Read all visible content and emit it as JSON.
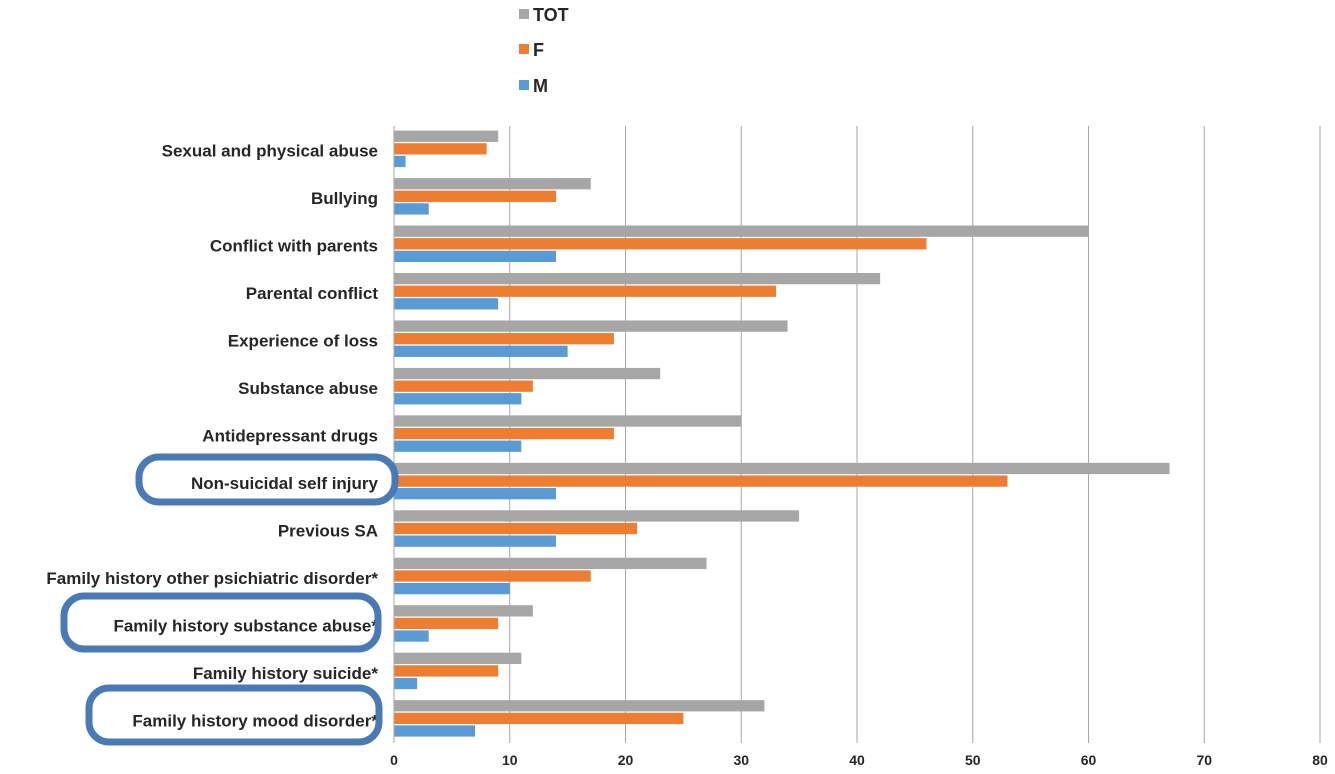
{
  "chart_data": {
    "type": "bar",
    "orientation": "horizontal",
    "categories": [
      "Sexual and physical abuse",
      "Bullying",
      "Conflict with parents",
      "Parental conflict",
      "Experience of loss",
      "Substance abuse",
      "Antidepressant drugs",
      "Non-suicidal self injury",
      "Previous SA",
      "Family history other psichiatric disorder*",
      "Family history substance abuse*",
      "Family history suicide*",
      "Family history mood disorder*"
    ],
    "series": [
      {
        "name": "TOT",
        "color": "#a6a6a6",
        "values": [
          9,
          17,
          60,
          42,
          34,
          23,
          30,
          67,
          35,
          27,
          12,
          11,
          32
        ]
      },
      {
        "name": "F",
        "color": "#ed7d31",
        "values": [
          8,
          14,
          46,
          33,
          19,
          12,
          19,
          53,
          21,
          17,
          9,
          9,
          25
        ]
      },
      {
        "name": "M",
        "color": "#5b9bd5",
        "values": [
          1,
          3,
          14,
          9,
          15,
          11,
          11,
          14,
          14,
          10,
          3,
          2,
          7
        ]
      }
    ],
    "xlim": [
      0,
      80
    ],
    "x_ticks": [
      "0",
      "10",
      "20",
      "30",
      "40",
      "50",
      "60",
      "70",
      "80"
    ],
    "grid": true,
    "legend": "top",
    "highlighted_categories": [
      "Non-suicidal self injury",
      "Family history substance abuse*",
      "Family history mood disorder*"
    ],
    "highlight_color": "#4a7ab5"
  }
}
